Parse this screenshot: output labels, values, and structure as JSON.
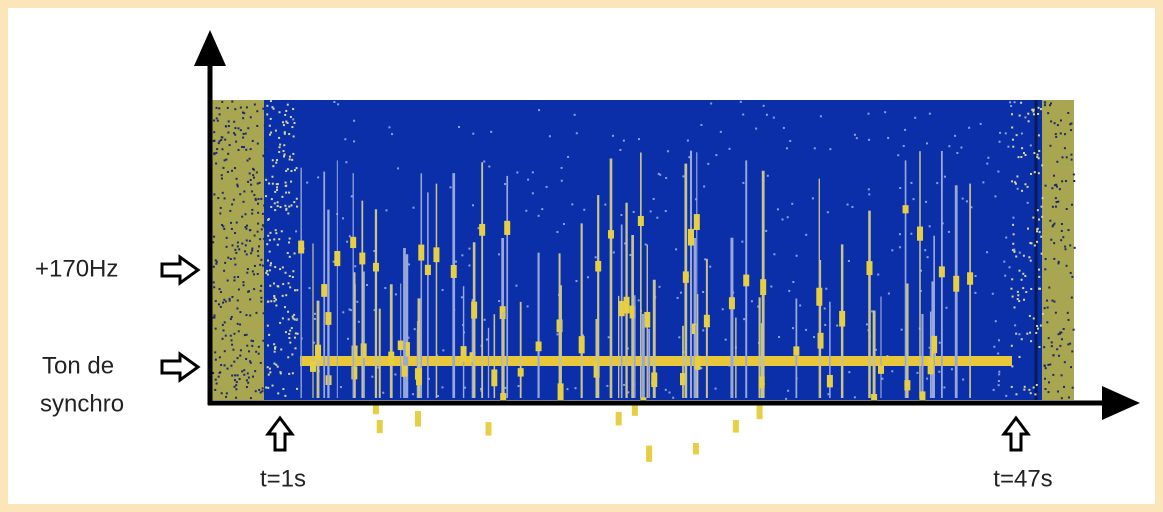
{
  "labels": {
    "freq_marker": "+170Hz",
    "sync_tone": [
      "Ton de",
      "synchro"
    ],
    "time_start": "t=1s",
    "time_end": "t=47s"
  }
}
